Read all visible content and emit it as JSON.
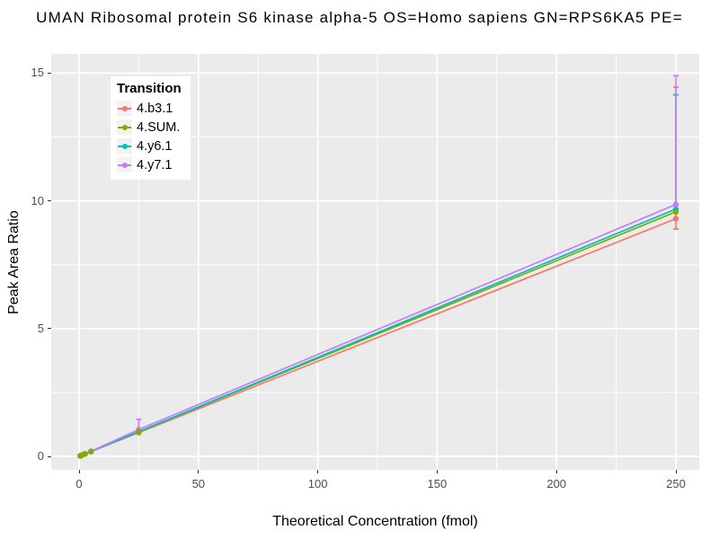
{
  "title": "UMAN Ribosomal protein S6 kinase alpha-5 OS=Homo sapiens GN=RPS6KA5 PE=",
  "chart_data": {
    "type": "line",
    "title": "UMAN Ribosomal protein S6 kinase alpha-5 OS=Homo sapiens GN=RPS6KA5 PE=",
    "xlabel": "Theoretical Concentration (fmol)",
    "ylabel": "Peak Area Ratio",
    "x_ticks": [
      0,
      50,
      100,
      150,
      200,
      250
    ],
    "y_ticks": [
      0,
      5,
      10,
      15
    ],
    "xlim": [
      -12,
      259
    ],
    "ylim": [
      -0.5,
      15.8
    ],
    "grid": "white major and minor gridlines on gray panel",
    "legend": {
      "title": "Transition",
      "position": "top-left inside plot",
      "labels": [
        "4.b3.1",
        "4.SUM.",
        "4.y6.1",
        "4.y7.1"
      ]
    },
    "series": [
      {
        "name": "4.b3.1",
        "color": "#F8766D",
        "x": [
          0.5,
          1,
          2.5,
          5,
          25,
          250
        ],
        "y": [
          0.02,
          0.04,
          0.09,
          0.19,
          0.93,
          9.3
        ]
      },
      {
        "name": "4.SUM.",
        "color": "#7CAE00",
        "x": [
          0.5,
          1,
          2.5,
          5,
          25,
          250
        ],
        "y": [
          0.02,
          0.04,
          0.1,
          0.19,
          0.96,
          9.57
        ]
      },
      {
        "name": "4.y6.1",
        "color": "#00BFC4",
        "x": [
          0.5,
          1,
          2.5,
          5,
          25,
          250
        ],
        "y": [
          0.02,
          0.04,
          0.1,
          0.19,
          0.97,
          9.68
        ]
      },
      {
        "name": "4.y7.1",
        "color": "#C77CFF",
        "x": [
          0.5,
          1,
          2.5,
          5,
          25,
          250
        ],
        "y": [
          0.02,
          0.04,
          0.1,
          0.2,
          1.05,
          9.86
        ]
      }
    ],
    "error_bars": [
      {
        "series": "4.b3.1",
        "x": 250,
        "ymin": 8.9,
        "ymax": 14.45
      },
      {
        "series": "4.y6.1",
        "x": 250,
        "ymin": 9.68,
        "ymax": 14.15
      },
      {
        "series": "4.y7.1",
        "x": 250,
        "ymin": 9.86,
        "ymax": 14.9
      },
      {
        "series": "4.y7.1",
        "x": 25,
        "ymin": 1.05,
        "ymax": 1.45
      }
    ],
    "colors": {
      "panel_bg": "#EBEBEB",
      "grid": "#FFFFFF",
      "tick_text": "#4D4D4D",
      "axis_title_text": "#000000",
      "legend_key_bg": "#F2F2F2"
    }
  }
}
